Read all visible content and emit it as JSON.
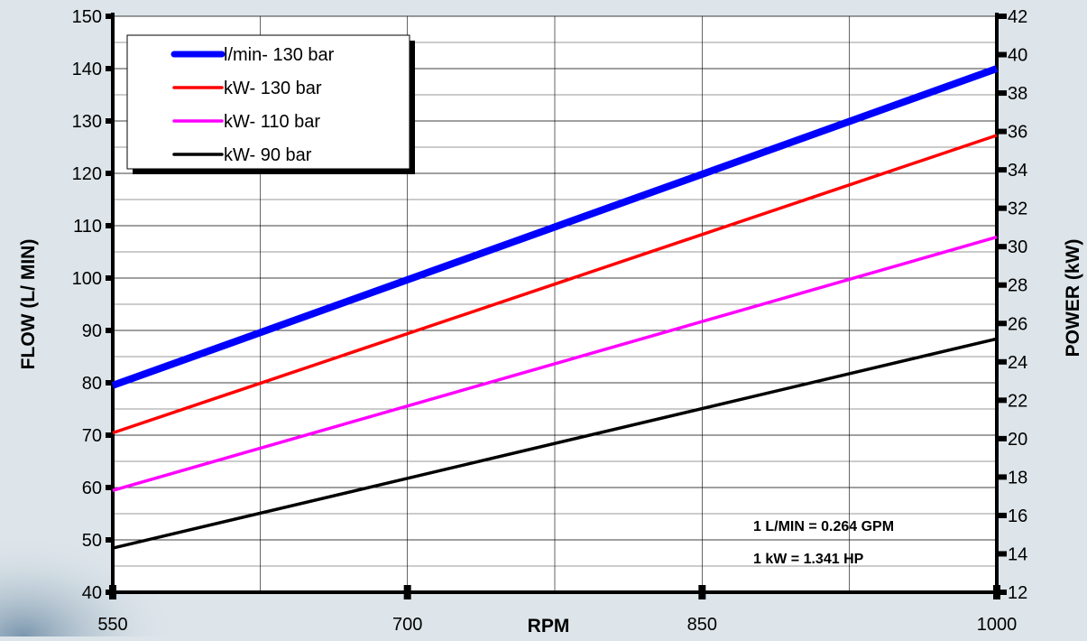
{
  "chart_data": {
    "type": "line",
    "title": "",
    "xlabel": "RPM",
    "ylabel": "FLOW  (L/ MIN)",
    "y2label": "POWER  (kW)",
    "xlim": [
      550,
      1000
    ],
    "ylim": [
      40,
      150
    ],
    "y2lim": [
      12,
      42
    ],
    "x_ticks": [
      550,
      700,
      850,
      1000
    ],
    "y_ticks": [
      40,
      50,
      60,
      70,
      80,
      90,
      100,
      110,
      120,
      130,
      140,
      150
    ],
    "y2_ticks": [
      12,
      14,
      16,
      18,
      20,
      22,
      24,
      26,
      28,
      30,
      32,
      34,
      36,
      38,
      40,
      42
    ],
    "grid": true,
    "legend_position": "top-left",
    "series": [
      {
        "name": "l/min- 130 bar",
        "axis": "left",
        "color": "#0000ff",
        "x": [
          550,
          1000
        ],
        "y": [
          79.5,
          140
        ]
      },
      {
        "name": "kW- 130 bar",
        "axis": "right",
        "color": "#ff0000",
        "x": [
          550,
          1000
        ],
        "y": [
          20.3,
          35.8
        ]
      },
      {
        "name": "kW- 110 bar",
        "axis": "right",
        "color": "#ff00ff",
        "x": [
          550,
          1000
        ],
        "y": [
          17.3,
          30.5
        ]
      },
      {
        "name": "kW- 90 bar",
        "axis": "right",
        "color": "#000000",
        "x": [
          550,
          1000
        ],
        "y": [
          14.3,
          25.2
        ]
      }
    ],
    "annotations": [
      "1 L/MIN = 0.264 GPM",
      "1 kW = 1.341 HP"
    ]
  }
}
